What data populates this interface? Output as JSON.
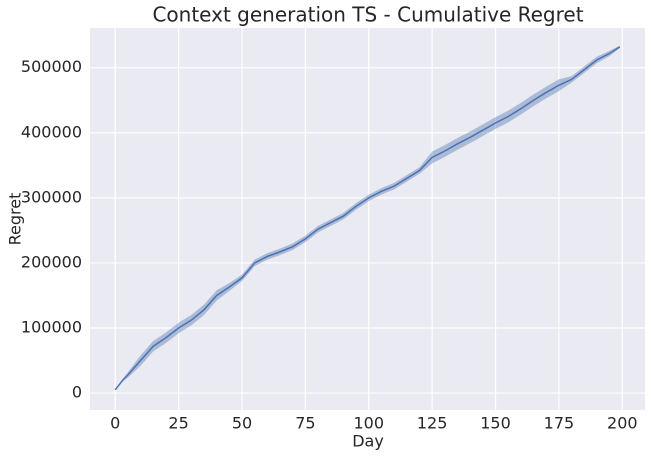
{
  "chart_data": {
    "type": "line",
    "title": "Context generation TS - Cumulative Regret",
    "x_label": "Day",
    "y_label": "Regret",
    "x": [
      0,
      3,
      5,
      10,
      15,
      20,
      25,
      30,
      35,
      40,
      45,
      50,
      55,
      60,
      65,
      70,
      75,
      80,
      85,
      90,
      95,
      100,
      105,
      110,
      115,
      120,
      125,
      130,
      135,
      140,
      145,
      150,
      155,
      160,
      165,
      170,
      175,
      180,
      185,
      190,
      195,
      199
    ],
    "values": [
      5000,
      20000,
      28000,
      50000,
      72000,
      85000,
      100000,
      112000,
      128000,
      150000,
      163000,
      177000,
      200000,
      210000,
      217000,
      225000,
      237000,
      252000,
      262000,
      272000,
      287000,
      300000,
      310000,
      318000,
      330000,
      342000,
      362000,
      372000,
      383000,
      393000,
      404000,
      415000,
      425000,
      437000,
      450000,
      462000,
      473000,
      482000,
      497000,
      512000,
      522000,
      532000
    ],
    "lower": [
      5000,
      18000,
      24000,
      42000,
      64000,
      77000,
      92000,
      104000,
      120000,
      142000,
      157000,
      172000,
      195000,
      205000,
      212000,
      220000,
      232000,
      247000,
      257000,
      267000,
      282000,
      295000,
      305000,
      313000,
      325000,
      337000,
      353000,
      363000,
      374000,
      384000,
      395000,
      406000,
      416000,
      428000,
      441000,
      453000,
      464000,
      477000,
      492000,
      507000,
      518000,
      530000
    ],
    "upper": [
      5000,
      22000,
      32000,
      58000,
      80000,
      93000,
      108000,
      120000,
      136000,
      158000,
      169000,
      182000,
      205000,
      215000,
      222000,
      230000,
      242000,
      257000,
      267000,
      277000,
      292000,
      305000,
      315000,
      323000,
      335000,
      347000,
      371000,
      381000,
      392000,
      402000,
      413000,
      424000,
      434000,
      446000,
      459000,
      471000,
      482000,
      487000,
      502000,
      517000,
      526000,
      534000
    ],
    "color": "#4c72b0",
    "band_color": "#4c72b0",
    "xlim": [
      -9.95,
      208.95
    ],
    "xticks": [
      0,
      25,
      50,
      75,
      100,
      125,
      150,
      175,
      200
    ],
    "ylim": [
      -26000,
      561000
    ],
    "yticks": [
      0,
      100000,
      200000,
      300000,
      400000,
      500000
    ],
    "grid": true
  }
}
